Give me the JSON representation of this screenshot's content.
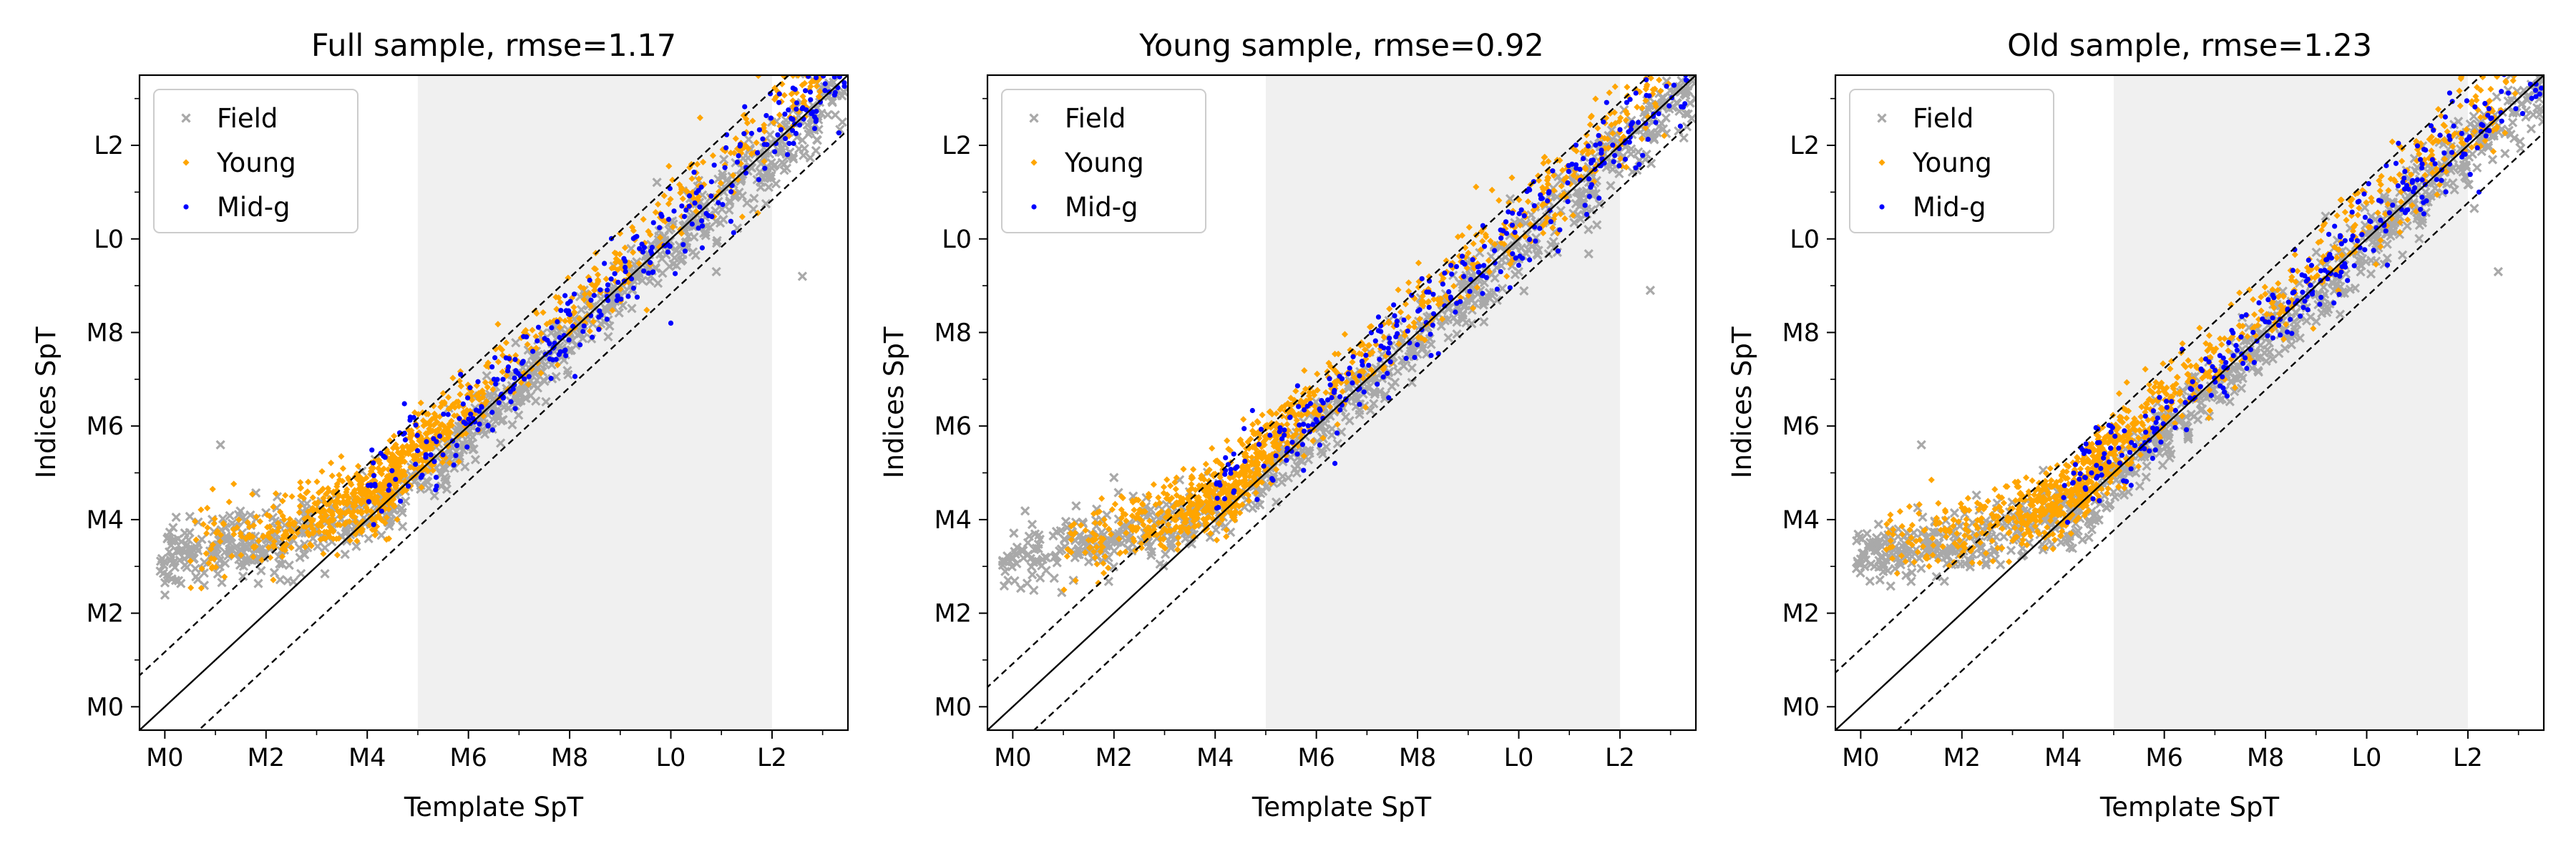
{
  "figure": {
    "tick_labels": [
      "M0",
      "M2",
      "M4",
      "M6",
      "M8",
      "L0",
      "L2"
    ],
    "tick_values": [
      0,
      2,
      4,
      6,
      8,
      10,
      12
    ],
    "minor_tick_values": [
      1,
      3,
      5,
      7,
      9,
      11,
      13
    ],
    "colors": {
      "Field": "#a9a9a9",
      "Young": "#ffa500",
      "Mid-g": "#0000ff",
      "shade": "#f0f0f0",
      "line": "#000000"
    }
  },
  "chart_data": [
    {
      "type": "scatter",
      "title": "Full sample, rmse=1.17",
      "xlabel": "Template SpT",
      "ylabel": "Indices SpT",
      "xlim": [
        -0.5,
        13.5
      ],
      "ylim": [
        -0.5,
        13.5
      ],
      "shaded_region_x": [
        5,
        12
      ],
      "reference_lines": {
        "identity_slope": 1,
        "offset": 1.17
      },
      "legend": {
        "position": "top-left",
        "entries": [
          "Field",
          "Young",
          "Mid-g"
        ]
      },
      "series": [
        {
          "name": "Field",
          "marker": "x",
          "color": "#a9a9a9",
          "count": 900,
          "x_range": [
            -0.1,
            13.5
          ],
          "outliers": [
            [
              1.1,
              5.6
            ],
            [
              12.6,
              9.2
            ],
            [
              10.9,
              9.3
            ]
          ]
        },
        {
          "name": "Young",
          "marker": "diamond",
          "color": "#ffa500",
          "count": 1000,
          "x_range": [
            0.5,
            13.0
          ],
          "outliers": []
        },
        {
          "name": "Mid-g",
          "marker": "dot",
          "color": "#0000ff",
          "count": 320,
          "x_range": [
            4.0,
            13.5
          ],
          "outliers": [
            [
              10.0,
              8.2
            ]
          ]
        }
      ]
    },
    {
      "type": "scatter",
      "title": "Young sample, rmse=0.92",
      "xlabel": "Template SpT",
      "ylabel": "Indices SpT",
      "xlim": [
        -0.5,
        13.5
      ],
      "ylim": [
        -0.5,
        13.5
      ],
      "shaded_region_x": [
        5,
        12
      ],
      "reference_lines": {
        "identity_slope": 1,
        "offset": 0.92
      },
      "legend": {
        "position": "top-left",
        "entries": [
          "Field",
          "Young",
          "Mid-g"
        ]
      },
      "series": [
        {
          "name": "Field",
          "marker": "x",
          "color": "#a9a9a9",
          "count": 800,
          "x_range": [
            -0.2,
            13.5
          ],
          "outliers": [
            [
              2.0,
              4.9
            ],
            [
              12.6,
              8.9
            ]
          ]
        },
        {
          "name": "Young",
          "marker": "diamond",
          "color": "#ffa500",
          "count": 1000,
          "x_range": [
            1.0,
            13.0
          ],
          "outliers": []
        },
        {
          "name": "Mid-g",
          "marker": "dot",
          "color": "#0000ff",
          "count": 300,
          "x_range": [
            4.0,
            13.5
          ],
          "outliers": []
        }
      ]
    },
    {
      "type": "scatter",
      "title": "Old sample, rmse=1.23",
      "xlabel": "Template SpT",
      "ylabel": "Indices SpT",
      "xlim": [
        -0.5,
        13.5
      ],
      "ylim": [
        -0.5,
        13.5
      ],
      "shaded_region_x": [
        5,
        12
      ],
      "reference_lines": {
        "identity_slope": 1,
        "offset": 1.23
      },
      "legend": {
        "position": "top-left",
        "entries": [
          "Field",
          "Young",
          "Mid-g"
        ]
      },
      "series": [
        {
          "name": "Field",
          "marker": "x",
          "color": "#a9a9a9",
          "count": 900,
          "x_range": [
            -0.1,
            13.5
          ],
          "outliers": [
            [
              1.2,
              5.6
            ],
            [
              12.6,
              9.3
            ]
          ]
        },
        {
          "name": "Young",
          "marker": "diamond",
          "color": "#ffa500",
          "count": 1000,
          "x_range": [
            0.5,
            13.0
          ],
          "outliers": []
        },
        {
          "name": "Mid-g",
          "marker": "dot",
          "color": "#0000ff",
          "count": 320,
          "x_range": [
            4.0,
            13.5
          ],
          "outliers": []
        }
      ]
    }
  ]
}
